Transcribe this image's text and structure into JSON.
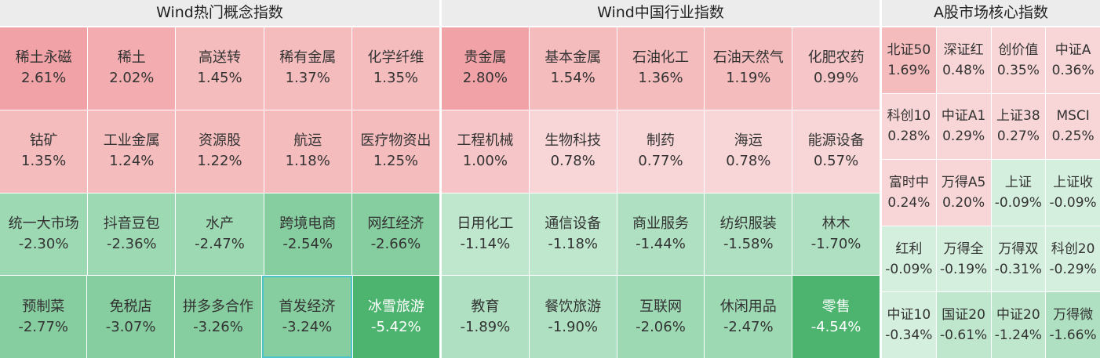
{
  "panels": [
    {
      "title": "Wind热门概念指数",
      "rows": [
        [
          {
            "name": "稀土永磁",
            "change": "2.61%"
          },
          {
            "name": "稀土",
            "change": "2.02%"
          },
          {
            "name": "高送转",
            "change": "1.45%"
          },
          {
            "name": "稀有金属",
            "change": "1.37%"
          },
          {
            "name": "化学纤维",
            "change": "1.35%"
          }
        ],
        [
          {
            "name": "钴矿",
            "change": "1.35%"
          },
          {
            "name": "工业金属",
            "change": "1.24%"
          },
          {
            "name": "资源股",
            "change": "1.22%"
          },
          {
            "name": "航运",
            "change": "1.18%"
          },
          {
            "name": "医疗物资出",
            "change": "1.25%"
          }
        ],
        [
          {
            "name": "统一大市场",
            "change": "-2.30%"
          },
          {
            "name": "抖音豆包",
            "change": "-2.36%"
          },
          {
            "name": "水产",
            "change": "-2.47%"
          },
          {
            "name": "跨境电商",
            "change": "-2.54%"
          },
          {
            "name": "网红经济",
            "change": "-2.66%"
          }
        ],
        [
          {
            "name": "预制菜",
            "change": "-2.77%"
          },
          {
            "name": "免税店",
            "change": "-3.07%"
          },
          {
            "name": "拼多多合作",
            "change": "-3.26%"
          },
          {
            "name": "首发经济",
            "change": "-3.24%"
          },
          {
            "name": "冰雪旅游",
            "change": "-5.42%"
          }
        ]
      ]
    },
    {
      "title": "Wind中国行业指数",
      "rows": [
        [
          {
            "name": "贵金属",
            "change": "2.80%"
          },
          {
            "name": "基本金属",
            "change": "1.54%"
          },
          {
            "name": "石油化工",
            "change": "1.36%"
          },
          {
            "name": "石油天然气",
            "change": "1.19%"
          },
          {
            "name": "化肥农药",
            "change": "0.99%"
          }
        ],
        [
          {
            "name": "工程机械",
            "change": "1.00%"
          },
          {
            "name": "生物科技",
            "change": "0.78%"
          },
          {
            "name": "制药",
            "change": "0.77%"
          },
          {
            "name": "海运",
            "change": "0.78%"
          },
          {
            "name": "能源设备",
            "change": "0.57%"
          }
        ],
        [
          {
            "name": "日用化工",
            "change": "-1.14%"
          },
          {
            "name": "通信设备",
            "change": "-1.18%"
          },
          {
            "name": "商业服务",
            "change": "-1.44%"
          },
          {
            "name": "纺织服装",
            "change": "-1.58%"
          },
          {
            "name": "林木",
            "change": "-1.70%"
          }
        ],
        [
          {
            "name": "教育",
            "change": "-1.89%"
          },
          {
            "name": "餐饮旅游",
            "change": "-1.90%"
          },
          {
            "name": "互联网",
            "change": "-2.06%"
          },
          {
            "name": "休闲用品",
            "change": "-2.47%"
          },
          {
            "name": "零售",
            "change": "-4.54%"
          }
        ]
      ]
    },
    {
      "title": "A股市场核心指数",
      "rows": [
        [
          {
            "name": "北证50",
            "change": "1.69%"
          },
          {
            "name": "深证红",
            "change": "0.48%"
          },
          {
            "name": "创价值",
            "change": "0.35%"
          },
          {
            "name": "中证A",
            "change": "0.36%"
          }
        ],
        [
          {
            "name": "科创10",
            "change": "0.28%"
          },
          {
            "name": "中证A1",
            "change": "0.29%"
          },
          {
            "name": "上证38",
            "change": "0.27%"
          },
          {
            "name": "MSCI",
            "change": "0.25%"
          }
        ],
        [
          {
            "name": "富时中",
            "change": "0.24%"
          },
          {
            "name": "万得A5",
            "change": "0.20%"
          },
          {
            "name": "上证",
            "change": "-0.09%"
          },
          {
            "name": "上证收",
            "change": "-0.09%"
          }
        ],
        [
          {
            "name": "红利",
            "change": "-0.09%"
          },
          {
            "name": "万得全",
            "change": "-0.19%"
          },
          {
            "name": "万得双",
            "change": "-0.31%"
          },
          {
            "name": "科创20",
            "change": "-0.29%"
          }
        ],
        [
          {
            "name": "中证10",
            "change": "-0.34%"
          },
          {
            "name": "国证20",
            "change": "-0.61%"
          },
          {
            "name": "中证20",
            "change": "-1.24%"
          },
          {
            "name": "万得微",
            "change": "-1.66%"
          }
        ]
      ]
    }
  ]
}
